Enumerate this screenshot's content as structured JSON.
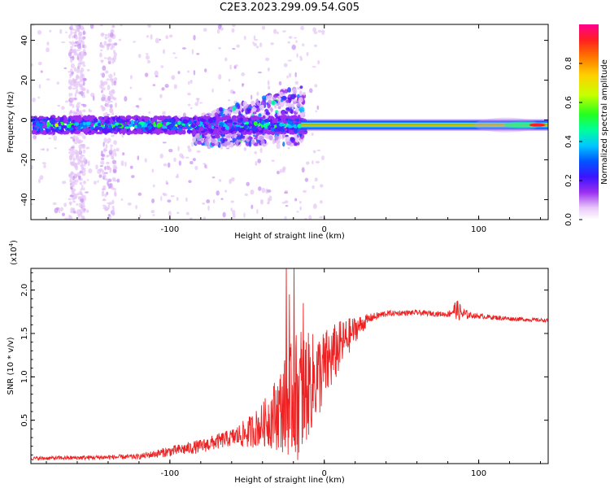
{
  "title": "C2E3.2023.299.09.54.G05",
  "colors": {
    "snr_line": "#ee2222",
    "axis": "#000000",
    "background": "#ffffff"
  },
  "chart_data": [
    {
      "type": "heatmap",
      "xlabel": "Height of straight line (km)",
      "ylabel": "Frequency (Hz)",
      "xlim": [
        -190,
        145
      ],
      "ylim": [
        -50,
        48
      ],
      "x_ticks": [
        -100,
        0,
        100
      ],
      "x_tick_labels": [
        "-100",
        "0",
        "100"
      ],
      "y_ticks": [
        -40,
        -20,
        0,
        20,
        40
      ],
      "y_tick_labels": [
        "-40",
        "-20",
        "0",
        "20",
        "40"
      ],
      "colorbar": {
        "label": "Normalized spectral amplitude",
        "range": [
          0,
          1
        ],
        "ticks": [
          0.0,
          0.2,
          0.4,
          0.6,
          0.8
        ],
        "tick_labels": [
          "0.0",
          "0.2",
          "0.4",
          "0.6",
          "0.8"
        ]
      },
      "description_points": {
        "main_band_center_hz": -2.5,
        "main_band_halfwidth_hz": 3,
        "strong_band_start_km": -15,
        "spread_region_km": [
          -80,
          -15
        ],
        "spread_upper_hz": 20
      }
    },
    {
      "type": "line",
      "xlabel": "Height of straight line (km)",
      "ylabel": "SNR (10 * v/v)",
      "y_scale_label": "(x10",
      "y_scale_exponent": "4",
      "y_scale_close": ")",
      "xlim": [
        -190,
        145
      ],
      "ylim": [
        0,
        2.25
      ],
      "x_ticks": [
        -100,
        0,
        100
      ],
      "x_tick_labels": [
        "-100",
        "0",
        "100"
      ],
      "y_ticks": [
        0.5,
        1.0,
        1.5,
        2.0
      ],
      "y_tick_labels": [
        "0.5",
        "1.0",
        "1.5",
        "2.0"
      ],
      "series": [
        {
          "name": "SNR",
          "envelope_x": [
            -190,
            -150,
            -120,
            -100,
            -80,
            -60,
            -50,
            -40,
            -30,
            -20,
            -10,
            0,
            10,
            20,
            30,
            40,
            60,
            80,
            85,
            90,
            100,
            120,
            145
          ],
          "envelope_y": [
            0.06,
            0.07,
            0.08,
            0.14,
            0.2,
            0.3,
            0.35,
            0.45,
            0.6,
            0.75,
            0.9,
            1.1,
            1.35,
            1.55,
            1.68,
            1.73,
            1.74,
            1.72,
            1.78,
            1.72,
            1.7,
            1.67,
            1.65
          ],
          "noise_amplitude_x": [
            -190,
            -120,
            -100,
            -60,
            -40,
            -30,
            -20,
            -15,
            -10,
            0,
            10,
            20,
            30,
            45,
            80,
            86,
            95,
            145
          ],
          "noise_amplitude_y": [
            0.02,
            0.03,
            0.06,
            0.1,
            0.25,
            0.45,
            0.7,
            0.8,
            0.6,
            0.45,
            0.3,
            0.15,
            0.05,
            0.03,
            0.03,
            0.12,
            0.03,
            0.02
          ]
        }
      ]
    }
  ]
}
